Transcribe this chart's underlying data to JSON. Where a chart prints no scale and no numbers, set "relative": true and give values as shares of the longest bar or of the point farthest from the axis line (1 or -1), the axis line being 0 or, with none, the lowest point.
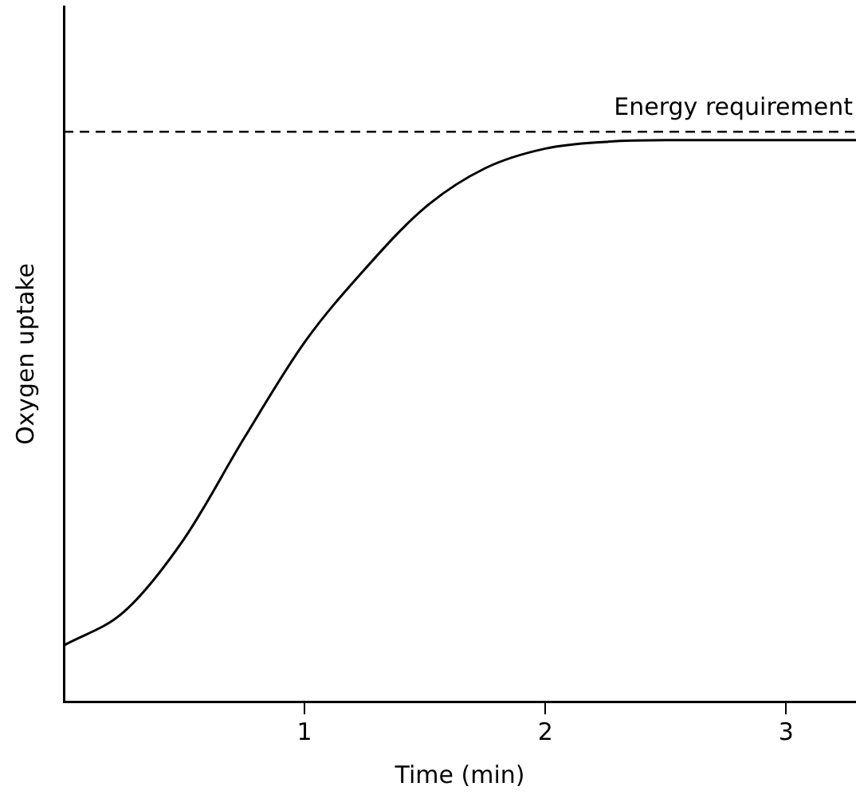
{
  "chart_data": {
    "type": "line",
    "relative": true,
    "xlabel": "Time (min)",
    "ylabel": "Oxygen uptake",
    "x": [
      0,
      0.25,
      0.5,
      0.75,
      1,
      1.25,
      1.5,
      1.75,
      2,
      2.25,
      2.5,
      2.75,
      3,
      3.29
    ],
    "series": [
      {
        "color": "#000000",
        "values": [
          0.1,
          0.16,
          0.29,
          0.47,
          0.64,
          0.77,
          0.88,
          0.95,
          0.985,
          0.997,
          1,
          1,
          1,
          1
        ]
      }
    ],
    "xlim": [
      0,
      3.29
    ],
    "xticks": [
      1,
      2,
      3
    ],
    "ref_lines": [
      {
        "axis": "y",
        "value": 1.015,
        "label": "Energy requirement",
        "line_style": "dashed",
        "color": "#000000"
      }
    ],
    "grid": false,
    "legend": false,
    "marker": "none",
    "line_style": "solid"
  }
}
